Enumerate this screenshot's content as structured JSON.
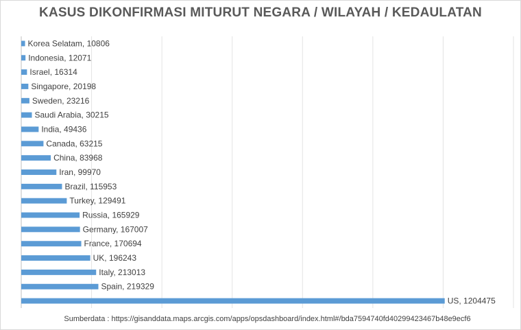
{
  "chart_data": {
    "type": "bar",
    "orientation": "horizontal",
    "title": "KASUS DIKONFIRMASI MITURUT NEGARA / WILAYAH / KEDAULATAN",
    "categories": [
      "Korea Selatam",
      "Indonesia",
      "Israel",
      "Singapore",
      "Sweden",
      "Saudi Arabia",
      "India",
      "Canada",
      "China",
      "Iran",
      "Brazil",
      "Turkey",
      "Russia",
      "Germany",
      "France",
      "UK",
      "Italy",
      "Spain",
      "US"
    ],
    "values": [
      10806,
      12071,
      16314,
      20198,
      23216,
      30215,
      49436,
      63215,
      83968,
      99970,
      115953,
      129491,
      165929,
      167007,
      170694,
      196243,
      213013,
      219329,
      1204475
    ],
    "xlim": [
      0,
      1400000
    ],
    "grid": true,
    "bar_color": "#5b9bd5",
    "legend": "none"
  },
  "footer": {
    "source": "Sumberdata : https://gisanddata.maps.arcgis.com/apps/opsdashboard/index.html#/bda7594740fd40299423467b48e9ecf6"
  }
}
